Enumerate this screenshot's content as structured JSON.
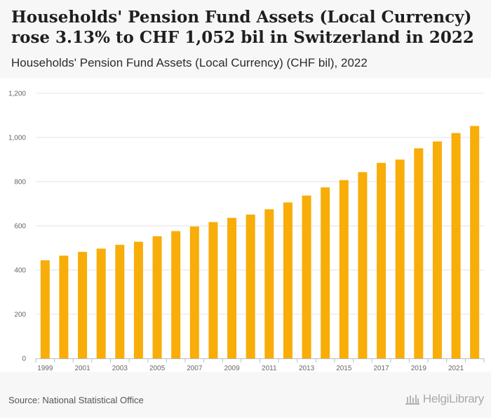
{
  "header": {
    "title": "Households' Pension Fund Assets (Local Currency) rose 3.13% to CHF 1,052 bil in Switzerland in 2022",
    "subtitle": "Households' Pension Fund Assets (Local Currency) (CHF bil), 2022"
  },
  "footer": {
    "source": "Source: National Statistical Office",
    "brand": "HelgiLibrary",
    "brand_icon": "library-building-icon"
  },
  "colors": {
    "bar": "#F8AD08",
    "grid": "#e3e3e3",
    "background": "#f7f7f7"
  },
  "chart_data": {
    "type": "bar",
    "title": "Households' Pension Fund Assets (Local Currency)",
    "xlabel": "",
    "ylabel": "CHF bil",
    "categories": [
      "1999",
      "2000",
      "2001",
      "2002",
      "2003",
      "2004",
      "2005",
      "2006",
      "2007",
      "2008",
      "2009",
      "2010",
      "2011",
      "2012",
      "2013",
      "2014",
      "2015",
      "2016",
      "2017",
      "2018",
      "2019",
      "2020",
      "2021",
      "2022"
    ],
    "x_tick_labels": [
      "1999",
      "2001",
      "2003",
      "2005",
      "2007",
      "2009",
      "2011",
      "2013",
      "2015",
      "2017",
      "2019",
      "2021"
    ],
    "values": [
      444,
      465,
      482,
      497,
      514,
      528,
      553,
      576,
      597,
      617,
      636,
      651,
      675,
      706,
      737,
      774,
      807,
      843,
      885,
      900,
      951,
      982,
      1020,
      1052
    ],
    "ylim": [
      0,
      1200
    ],
    "y_ticks": [
      0,
      200,
      400,
      600,
      800,
      1000,
      1200
    ],
    "y_tick_labels": [
      "0",
      "200",
      "400",
      "600",
      "800",
      "1,000",
      "1,200"
    ],
    "grid": true
  }
}
